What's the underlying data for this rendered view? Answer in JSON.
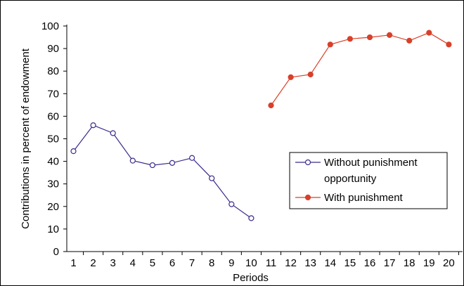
{
  "chart_data": {
    "type": "line",
    "xlabel": "Periods",
    "ylabel": "Contributions in percent of endowment",
    "ylim": [
      0,
      100
    ],
    "y_ticks": [
      0,
      10,
      20,
      30,
      40,
      50,
      60,
      70,
      80,
      90,
      100
    ],
    "x_ticks": [
      "1",
      "2",
      "3",
      "4",
      "5",
      "6",
      "7",
      "8",
      "9",
      "10",
      "11",
      "12",
      "13",
      "14",
      "15",
      "16",
      "17",
      "18",
      "19",
      "20"
    ],
    "grid": false,
    "legend_position": "center-right",
    "colors": {
      "without": "#3a2a8c",
      "with": "#d8402a",
      "axis": "#000000"
    },
    "series": [
      {
        "name": "Without punishment opportunity",
        "marker": "open-circle",
        "x": [
          1,
          2,
          3,
          4,
          5,
          6,
          7,
          8,
          9,
          10
        ],
        "values": [
          44.5,
          56,
          52.5,
          40.3,
          38.3,
          39.3,
          41.5,
          32.5,
          21,
          14.8
        ]
      },
      {
        "name": "With punishment",
        "marker": "filled-circle",
        "x": [
          11,
          12,
          13,
          14,
          15,
          16,
          17,
          18,
          19,
          20
        ],
        "values": [
          64.8,
          77.3,
          78.5,
          91.8,
          94.3,
          95,
          96,
          93.5,
          97,
          91.8
        ]
      }
    ],
    "legend": {
      "without_line1": "Without punishment",
      "without_line2": "opportunity",
      "with": "With punishment"
    }
  }
}
